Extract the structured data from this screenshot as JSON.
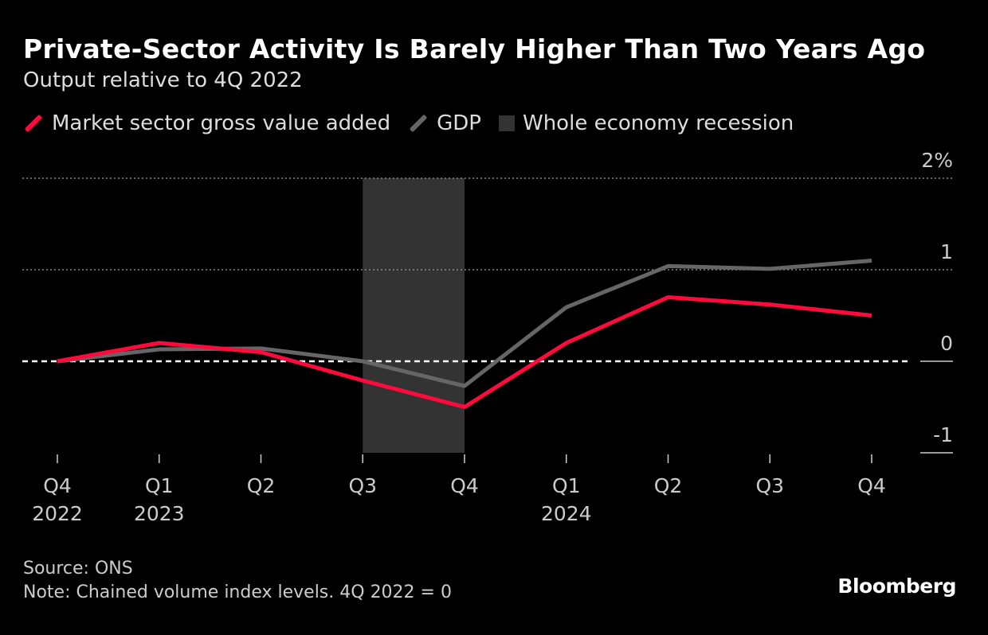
{
  "title": "Private-Sector Activity Is Barely Higher Than Two Years Ago",
  "subtitle": "Output relative to 4Q 2022",
  "legend": [
    {
      "label": "Market sector gross value added",
      "color": "#ff0a3c",
      "icon": "line"
    },
    {
      "label": "GDP",
      "color": "#666666",
      "icon": "line"
    },
    {
      "label": "Whole economy recession",
      "color": "#333333",
      "icon": "box"
    }
  ],
  "footer": {
    "source": "Source: ONS",
    "note": "Note: Chained volume index levels. 4Q 2022 = 0"
  },
  "logo": "Bloomberg",
  "chart_data": {
    "type": "line",
    "categories": [
      "Q4 2022",
      "Q1 2023",
      "Q2 2023",
      "Q3 2023",
      "Q4 2023",
      "Q1 2024",
      "Q2 2024",
      "Q3 2024",
      "Q4 2024"
    ],
    "x_tick_labels": [
      [
        "Q4",
        "2022"
      ],
      [
        "Q1",
        "2023"
      ],
      [
        "Q2",
        ""
      ],
      [
        "Q3",
        ""
      ],
      [
        "Q4",
        ""
      ],
      [
        "Q1",
        "2024"
      ],
      [
        "Q2",
        ""
      ],
      [
        "Q3",
        ""
      ],
      [
        "Q4",
        ""
      ]
    ],
    "series": [
      {
        "name": "Market sector gross value added",
        "color": "#ff0a3c",
        "values": [
          0,
          0.2,
          0.1,
          -0.21,
          -0.5,
          0.2,
          0.7,
          0.62,
          0.5
        ]
      },
      {
        "name": "GDP",
        "color": "#666666",
        "values": [
          0,
          0.13,
          0.14,
          0.0,
          -0.27,
          0.59,
          1.04,
          1.01,
          1.1
        ]
      }
    ],
    "shaded_ranges": [
      {
        "name": "Whole economy recession",
        "from": "Q3 2023",
        "to": "Q4 2023",
        "color": "#333333"
      }
    ],
    "ylim": [
      -1,
      2
    ],
    "y_ticks": [
      2,
      1,
      0,
      -1
    ],
    "y_tick_labels": [
      "2%",
      "1",
      "0",
      "-1"
    ],
    "y_axis_position": "right",
    "grid": true
  }
}
